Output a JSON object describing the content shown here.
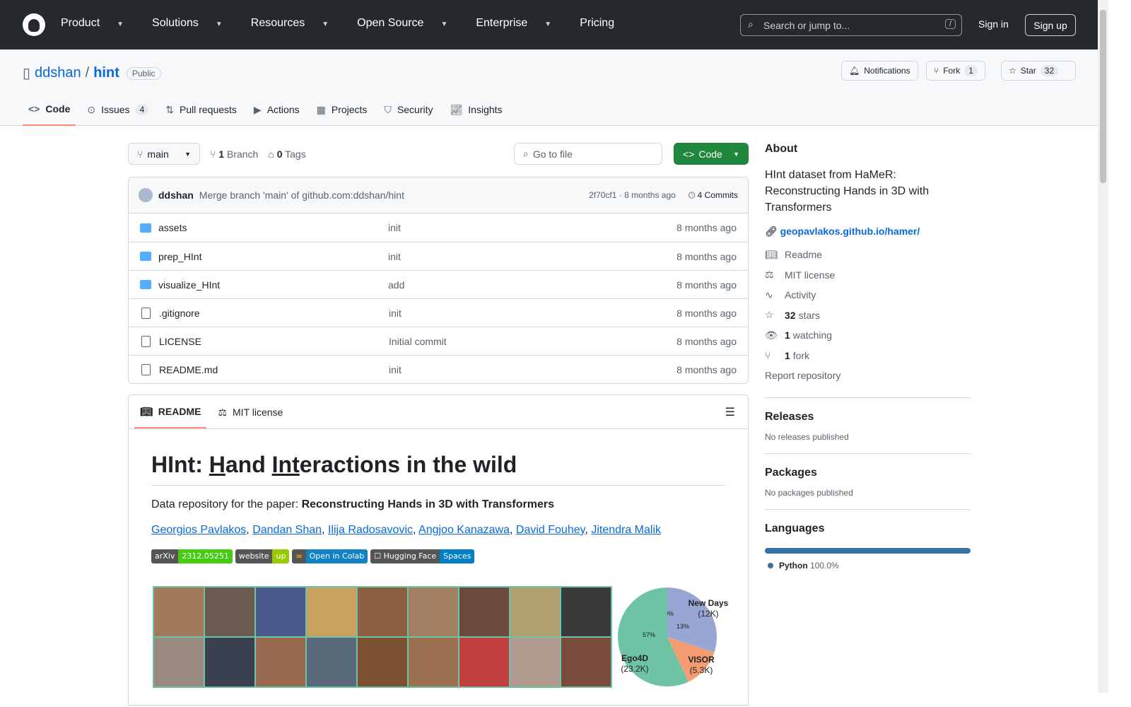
{
  "header": {
    "nav": [
      "Product",
      "Solutions",
      "Resources",
      "Open Source",
      "Enterprise",
      "Pricing"
    ],
    "nav_dropdown": [
      true,
      true,
      true,
      true,
      true,
      false
    ],
    "search_placeholder": "Search or jump to...",
    "search_key": "/",
    "sign_in": "Sign in",
    "sign_up": "Sign up"
  },
  "repo": {
    "owner": "ddshan",
    "sep": "/",
    "name": "hint",
    "visibility": "Public",
    "notifications": "Notifications",
    "fork": "Fork",
    "fork_count": "1",
    "star": "Star",
    "star_count": "32",
    "tabs": [
      {
        "label": "Code",
        "icon": "code-icon"
      },
      {
        "label": "Issues",
        "count": "4",
        "icon": "issue-icon"
      },
      {
        "label": "Pull requests",
        "icon": "pull-request-icon"
      },
      {
        "label": "Actions",
        "icon": "play-icon"
      },
      {
        "label": "Projects",
        "icon": "table-icon"
      },
      {
        "label": "Security",
        "icon": "shield-icon"
      },
      {
        "label": "Insights",
        "icon": "graph-icon"
      }
    ]
  },
  "toolbar": {
    "branch": "main",
    "branches_n": "1",
    "branches": "Branch",
    "tags_n": "0",
    "tags": "Tags",
    "goto": "Go to file",
    "code": "Code"
  },
  "commit": {
    "author": "ddshan",
    "message": "Merge branch 'main' of github.com:ddshan/hint",
    "sha_time": "2f70cf1 · 8 months ago",
    "commits": "4 Commits"
  },
  "files": [
    {
      "name": "assets",
      "type": "dir",
      "msg": "init",
      "time": "8 months ago"
    },
    {
      "name": "prep_HInt",
      "type": "dir",
      "msg": "init",
      "time": "8 months ago"
    },
    {
      "name": "visualize_HInt",
      "type": "dir",
      "msg": "add",
      "time": "8 months ago"
    },
    {
      "name": ".gitignore",
      "type": "file",
      "msg": "init",
      "time": "8 months ago"
    },
    {
      "name": "LICENSE",
      "type": "file",
      "msg": "Initial commit",
      "time": "8 months ago"
    },
    {
      "name": "README.md",
      "type": "file",
      "msg": "init",
      "time": "8 months ago"
    }
  ],
  "readme": {
    "tab1": "README",
    "tab2": "MIT license",
    "title_a": "HInt: ",
    "title_h": "H",
    "title_b": "and ",
    "title_int": "Int",
    "title_c": "eractions in the wild",
    "intro": "Data repository for the paper: ",
    "paper": "Reconstructing Hands in 3D with Transformers",
    "authors": [
      "Georgios Pavlakos",
      "Dandan Shan",
      "Ilija Radosavovic",
      "Angjoo Kanazawa",
      "David Fouhey",
      "Jitendra Malik"
    ],
    "badges": [
      {
        "l": "arXiv",
        "r": "2312.05251",
        "c": "#4c1",
        "lc": "#555"
      },
      {
        "l": "website",
        "r": "up",
        "c": "#97ca00",
        "lc": "#555"
      },
      {
        "l": "Open in Colab",
        "r": "",
        "c": "#1182c3",
        "lc": "#555",
        "logo": true
      },
      {
        "l": "☐ Hugging Face",
        "r": "Spaces",
        "c": "#007ec6",
        "lc": "#555"
      }
    ],
    "pie": [
      {
        "label": "New Days",
        "sub": "(12K)",
        "pct": "30%",
        "value": 30,
        "color": "#98a6d4"
      },
      {
        "label": "VISOR",
        "sub": "(5.3K)",
        "pct": "13%",
        "value": 13,
        "color": "#f49c72"
      },
      {
        "label": "Ego4D",
        "sub": "(23.2K)",
        "pct": "57%",
        "value": 57,
        "color": "#6dc3a3"
      }
    ]
  },
  "about": {
    "title": "About",
    "desc": "HInt dataset from HaMeR: Reconstructing Hands in 3D with Transformers",
    "link": "geopavlakos.github.io/hamer/",
    "items": [
      {
        "icon": "book-icon",
        "label": "Readme"
      },
      {
        "icon": "law-icon",
        "label": "MIT license"
      },
      {
        "icon": "pulse-icon",
        "label": "Activity"
      },
      {
        "icon": "star-icon",
        "n": "32",
        "label": "stars"
      },
      {
        "icon": "eye-icon",
        "n": "1",
        "label": "watching"
      },
      {
        "icon": "fork-icon",
        "n": "1",
        "label": "fork"
      }
    ],
    "report": "Report repository"
  },
  "releases": {
    "title": "Releases",
    "empty": "No releases published"
  },
  "packages": {
    "title": "Packages",
    "empty": "No packages published"
  },
  "languages": {
    "title": "Languages",
    "name": "Python",
    "pct": "100.0%",
    "value": 100,
    "color": "#3572A5"
  }
}
